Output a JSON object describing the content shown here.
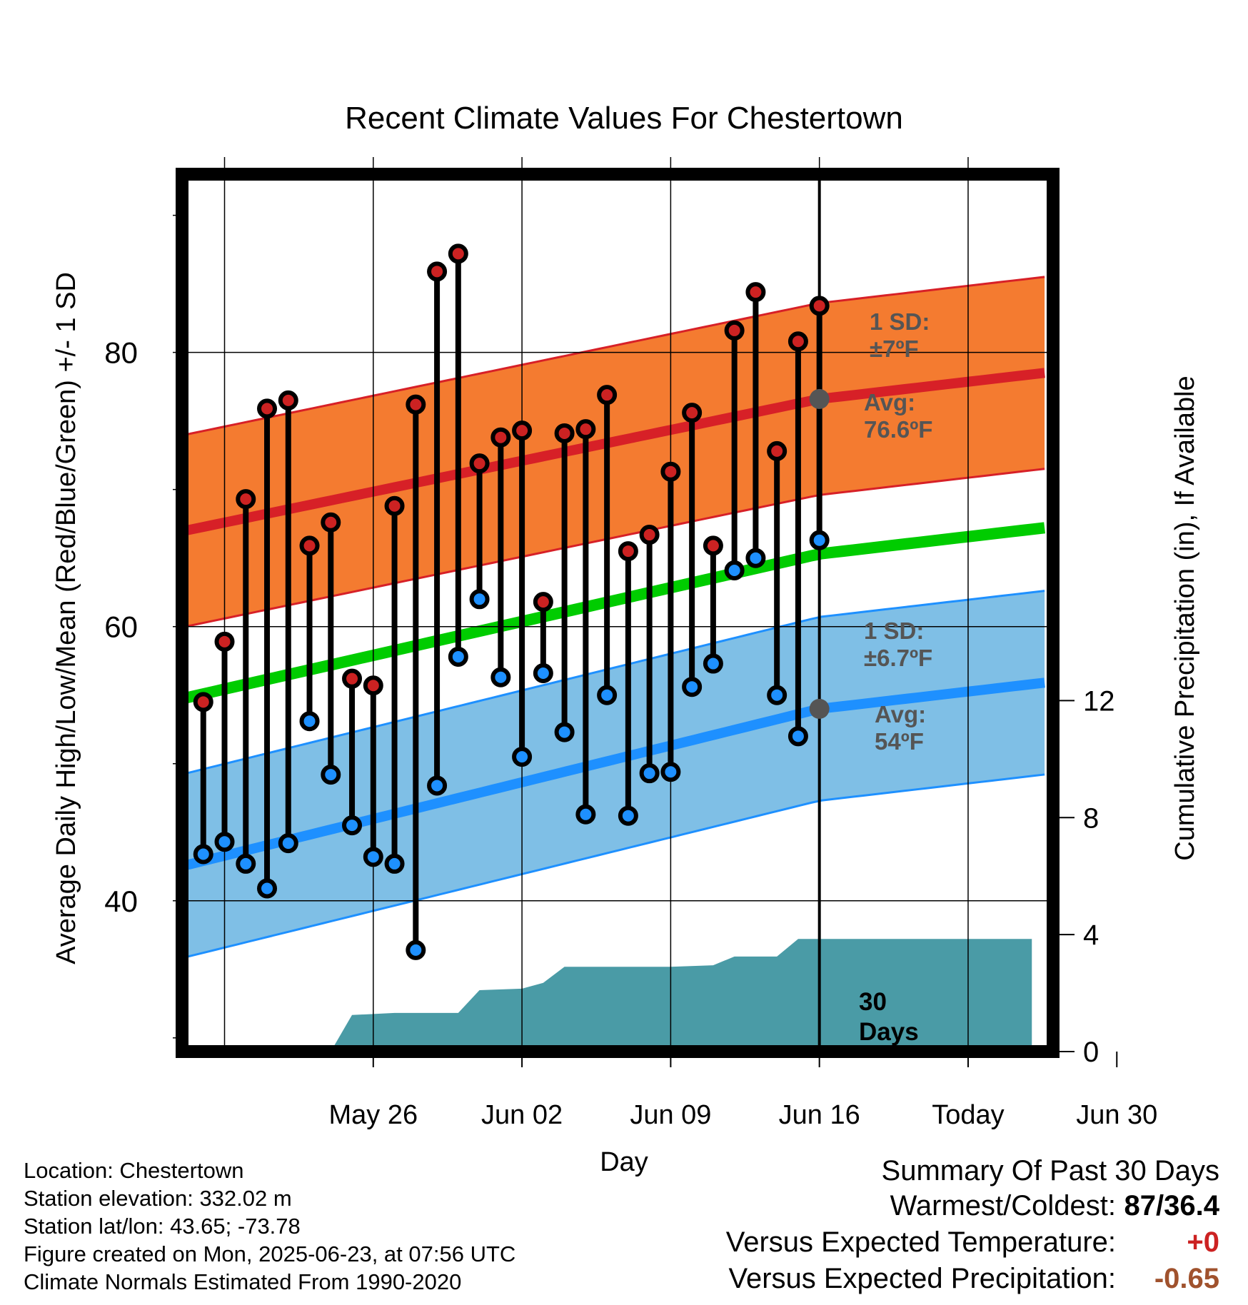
{
  "chart_data": {
    "type": "line",
    "title": "Recent Climate Values For Chestertown",
    "xlabel": "Day",
    "ylabel": "Average Daily High/Low/Mean (Red/Blue/Green) +/- 1 SD",
    "y2label": "Cumulative Precipitation (in), If Available",
    "x_ticks": [
      "May 26",
      "Jun 02",
      "Jun 09",
      "Jun 16",
      "Today",
      "Jun 30"
    ],
    "ylim": [
      29,
      93
    ],
    "y_ticks": [
      40,
      60,
      80
    ],
    "y2lim": [
      0,
      30
    ],
    "y2_ticks": [
      0,
      4,
      8,
      12
    ],
    "today_label": "30\nDays",
    "colors": {
      "high_band": "#F47B30",
      "high_mean": "#D72027",
      "low_band": "#7FBFE6",
      "low_mean": "#1E90FF",
      "mean": "#00CC00",
      "precip": "#4A9BA6",
      "high_point": "#CC2222",
      "low_point": "#1E90FF"
    },
    "normals": {
      "x": [
        -23,
        0,
        10
      ],
      "high_avg": [
        69.2,
        76.6,
        78.4
      ],
      "high_sd": 7,
      "low_avg": [
        45.2,
        54,
        55.8
      ],
      "low_sd": 6.7,
      "mean_avg": [
        57.2,
        65.3,
        67.1
      ]
    },
    "annotations": {
      "high_sd": "1 SD:\n±7ºF",
      "high_avg": "Avg:\n76.6ºF",
      "low_sd": "1 SD:\n±6.7ºF",
      "low_avg": "Avg:\n54ºF"
    },
    "series": [
      {
        "name": "High",
        "x": [
          -29,
          -28,
          -27,
          -26,
          -25,
          -24,
          -23,
          -22,
          -21,
          -20,
          -19,
          -18,
          -17,
          -16,
          -15,
          -14,
          -13,
          -12,
          -11,
          -10,
          -9,
          -8,
          -7,
          -6,
          -5,
          -4,
          -3,
          -2,
          -1,
          0
        ],
        "values": [
          54.5,
          58.9,
          69.3,
          75.9,
          76.5,
          65.9,
          67.6,
          56.2,
          55.7,
          68.8,
          76.2,
          85.9,
          87.2,
          71.9,
          73.8,
          74.3,
          61.8,
          74.1,
          74.4,
          76.9,
          65.5,
          66.7,
          71.3,
          75.6,
          65.9,
          81.6,
          84.4,
          72.8,
          80.8,
          83.4
        ]
      },
      {
        "name": "Low",
        "x": [
          -29,
          -28,
          -27,
          -26,
          -25,
          -24,
          -23,
          -22,
          -21,
          -20,
          -19,
          -18,
          -17,
          -16,
          -15,
          -14,
          -13,
          -12,
          -11,
          -10,
          -9,
          -8,
          -7,
          -6,
          -5,
          -4,
          -3,
          -2,
          -1,
          0
        ],
        "values": [
          43.4,
          44.3,
          42.7,
          40.9,
          44.2,
          53.1,
          49.2,
          45.5,
          43.2,
          42.7,
          36.4,
          48.4,
          57.8,
          62.0,
          56.3,
          50.5,
          56.6,
          52.3,
          46.3,
          55.0,
          46.2,
          49.3,
          49.4,
          55.6,
          57.3,
          64.1,
          65.0,
          55.0,
          52.0,
          66.3
        ]
      },
      {
        "name": "Precipitation",
        "x": [
          -23,
          -22,
          -20,
          -17,
          -16,
          -14,
          -13,
          -12,
          -7,
          -5,
          -4,
          -3,
          -2,
          -1,
          0,
          10
        ],
        "values": [
          0,
          1.25,
          1.32,
          1.32,
          2.1,
          2.15,
          2.35,
          2.9,
          2.9,
          2.95,
          3.25,
          3.25,
          3.25,
          3.85,
          3.85,
          3.85
        ]
      }
    ]
  },
  "info": {
    "location": "Location: Chestertown",
    "elevation": "Station elevation: 332.02 m",
    "latlon": "Station lat/lon: 43.65; -73.78",
    "created": "Figure created on Mon, 2025-06-23, at 07:56 UTC",
    "normals": "Climate Normals Estimated From 1990-2020"
  },
  "summary": {
    "title": "Summary Of Past 30 Days",
    "warmest_label": "Warmest/Coldest:",
    "warmest_value": "87/36.4",
    "temp_label": "Versus Expected Temperature:",
    "temp_value": "+0",
    "temp_color": "#CC2222",
    "precip_label": "Versus Expected Precipitation:",
    "precip_value": "-0.65",
    "precip_color": "#A0522D"
  }
}
